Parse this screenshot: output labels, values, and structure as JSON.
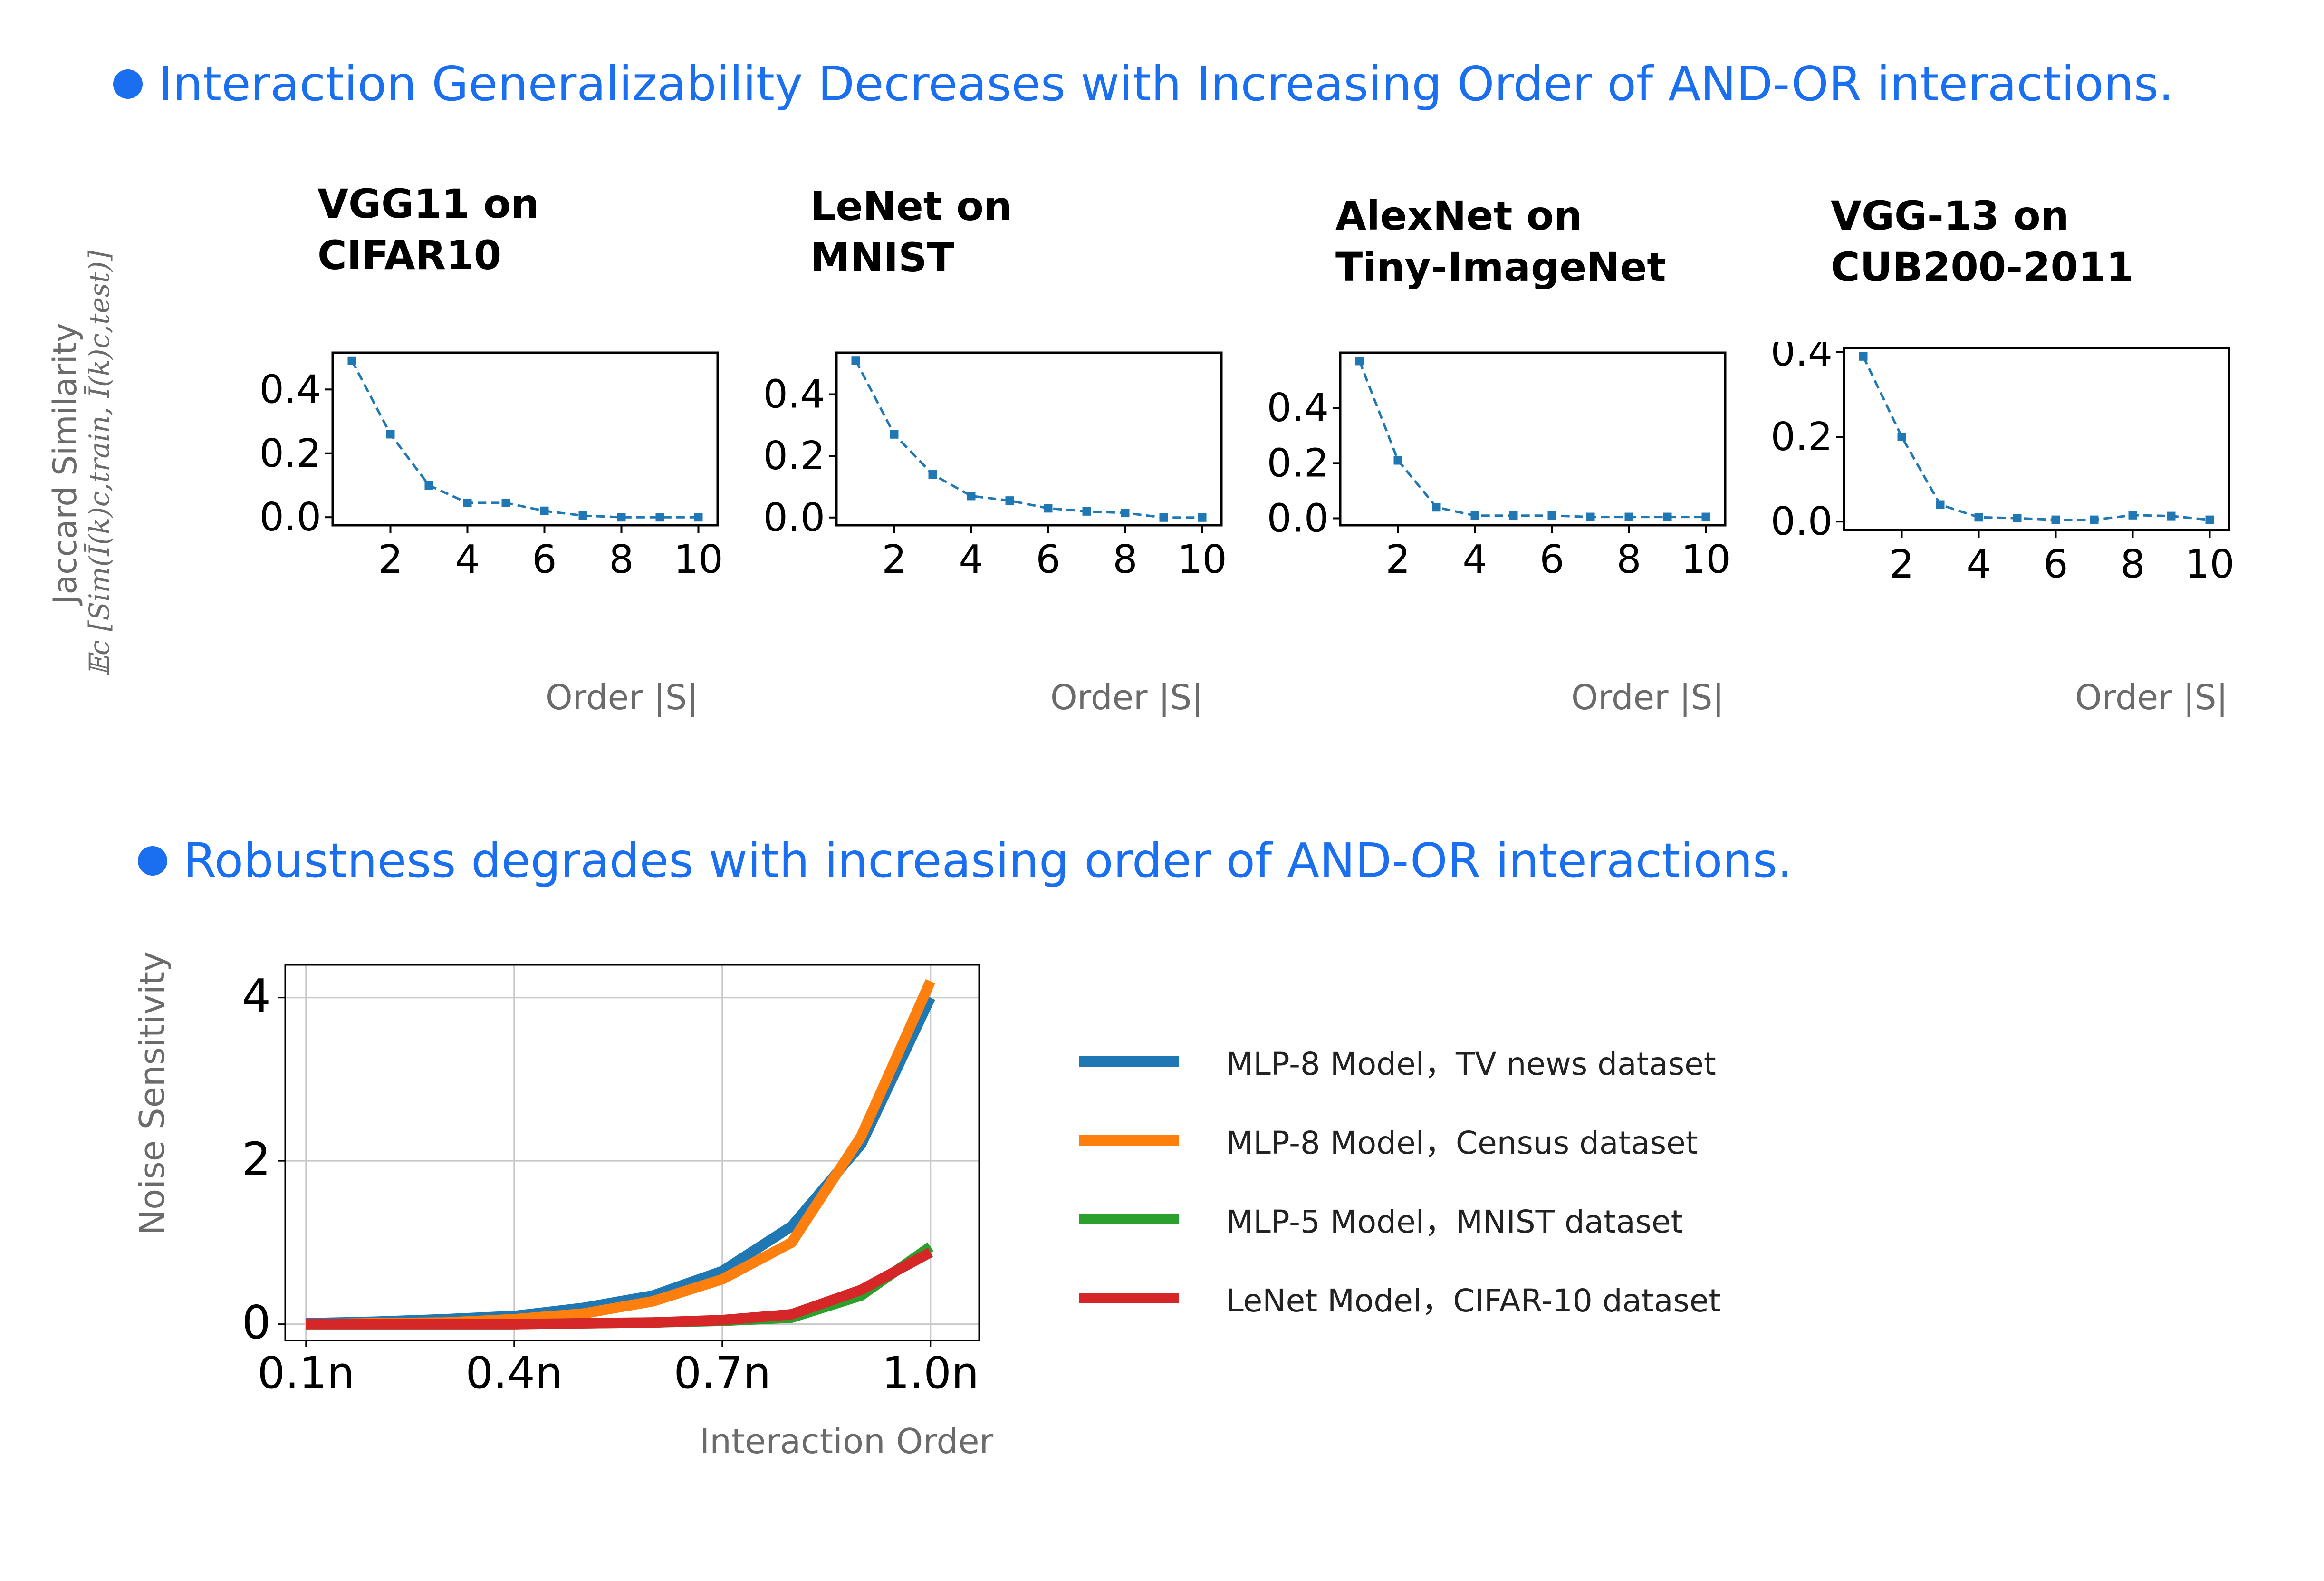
{
  "headings": {
    "top": "Interaction Generalizability Decreases with Increasing Order of AND-OR interactions.",
    "bottom": "Robustness degrades with increasing order of AND-OR interactions."
  },
  "top_axis": {
    "ylabel_line1": "Jaccard Similarity",
    "ylabel_line2": "𝔼c [Sim(Ī(k)c,train, Ī(k)c,test)]",
    "xlabel": "Order |S|"
  },
  "bottom_axis": {
    "ylabel": "Noise Sensitivity",
    "xlabel": "Interaction Order"
  },
  "colors": {
    "heading": "#1a6ff0",
    "top_series": "#1f77b4",
    "tv_news": "#1f77b4",
    "census": "#ff7f0e",
    "mnist": "#2ca02c",
    "cifar": "#d62728"
  },
  "chart_data": [
    {
      "type": "line",
      "title_line1": "VGG11 on",
      "title_line2": "CIFAR10",
      "x": [
        1,
        2,
        3,
        4,
        5,
        6,
        7,
        8,
        9,
        10
      ],
      "values": [
        0.49,
        0.26,
        0.1,
        0.045,
        0.045,
        0.02,
        0.005,
        0.0,
        0.0,
        0.0
      ],
      "xticks": [
        2,
        4,
        6,
        8,
        10
      ],
      "yticks": [
        0.0,
        0.2,
        0.4
      ],
      "ytick_labels": [
        "0.0",
        "0.2",
        "0.4"
      ],
      "xlim": [
        0.5,
        10.5
      ],
      "ylim": [
        -0.025,
        0.515
      ],
      "xlabel": "Order |S|"
    },
    {
      "type": "line",
      "title_line1": "LeNet on",
      "title_line2": "MNIST",
      "x": [
        1,
        2,
        3,
        4,
        5,
        6,
        7,
        8,
        9,
        10
      ],
      "values": [
        0.51,
        0.27,
        0.14,
        0.07,
        0.055,
        0.03,
        0.02,
        0.015,
        0.0,
        0.0
      ],
      "xticks": [
        2,
        4,
        6,
        8,
        10
      ],
      "yticks": [
        0.0,
        0.2,
        0.4
      ],
      "ytick_labels": [
        "0.0",
        "0.2",
        "0.4"
      ],
      "xlim": [
        0.5,
        10.5
      ],
      "ylim": [
        -0.025,
        0.535
      ],
      "xlabel": "Order |S|"
    },
    {
      "type": "line",
      "title_line1": "AlexNet on",
      "title_line2": "Tiny-ImageNet",
      "x": [
        1,
        2,
        3,
        4,
        5,
        6,
        7,
        8,
        9,
        10
      ],
      "values": [
        0.57,
        0.21,
        0.04,
        0.01,
        0.01,
        0.01,
        0.005,
        0.005,
        0.005,
        0.005
      ],
      "xticks": [
        2,
        4,
        6,
        8,
        10
      ],
      "yticks": [
        0.0,
        0.2,
        0.4
      ],
      "ytick_labels": [
        "0.0",
        "0.2",
        "0.4"
      ],
      "xlim": [
        0.5,
        10.5
      ],
      "ylim": [
        -0.025,
        0.6
      ],
      "xlabel": "Order |S|"
    },
    {
      "type": "line",
      "title_line1": "VGG-13 on",
      "title_line2": "CUB200-2011",
      "x": [
        1,
        2,
        3,
        4,
        5,
        6,
        7,
        8,
        9,
        10
      ],
      "values": [
        0.39,
        0.2,
        0.04,
        0.01,
        0.008,
        0.004,
        0.004,
        0.015,
        0.013,
        0.004
      ],
      "xticks": [
        2,
        4,
        6,
        8,
        10
      ],
      "yticks": [
        0.0,
        0.2,
        0.4
      ],
      "ytick_labels": [
        "0.0",
        "0.2",
        "0.4"
      ],
      "xlim": [
        0.5,
        10.5
      ],
      "ylim": [
        -0.02,
        0.41
      ],
      "xlabel": "Order |S|"
    },
    {
      "type": "line",
      "title": "",
      "xlabel": "Interaction Order",
      "ylabel": "Noise Sensitivity",
      "grid": true,
      "xlim": [
        0.07,
        1.07
      ],
      "ylim": [
        -0.2,
        4.4
      ],
      "xticks": [
        0.1,
        0.4,
        0.7,
        1.0
      ],
      "xtick_labels": [
        "0.1n",
        "0.4n",
        "0.7n",
        "1.0n"
      ],
      "yticks": [
        0,
        2,
        4
      ],
      "ytick_labels": [
        "0",
        "2",
        "4"
      ],
      "x": [
        0.1,
        0.2,
        0.3,
        0.4,
        0.5,
        0.6,
        0.7,
        0.8,
        0.9,
        1.0
      ],
      "series": [
        {
          "name": "MLP-8 Model，TV news dataset",
          "color": "#1f77b4",
          "values": [
            0.01,
            0.03,
            0.06,
            0.1,
            0.2,
            0.35,
            0.65,
            1.2,
            2.2,
            4.0
          ]
        },
        {
          "name": "MLP-8 Model，Census dataset",
          "color": "#ff7f0e",
          "values": [
            0.0,
            0.01,
            0.02,
            0.06,
            0.13,
            0.28,
            0.55,
            1.0,
            2.3,
            4.2
          ]
        },
        {
          "name": "MLP-5 Model，MNIST dataset",
          "color": "#2ca02c",
          "values": [
            0.0,
            0.0,
            0.0,
            0.0,
            0.01,
            0.02,
            0.04,
            0.08,
            0.35,
            0.95
          ]
        },
        {
          "name": "LeNet Model，CIFAR-10 dataset",
          "color": "#d62728",
          "values": [
            0.0,
            0.0,
            0.0,
            0.0,
            0.01,
            0.02,
            0.05,
            0.12,
            0.42,
            0.88
          ]
        }
      ]
    }
  ]
}
